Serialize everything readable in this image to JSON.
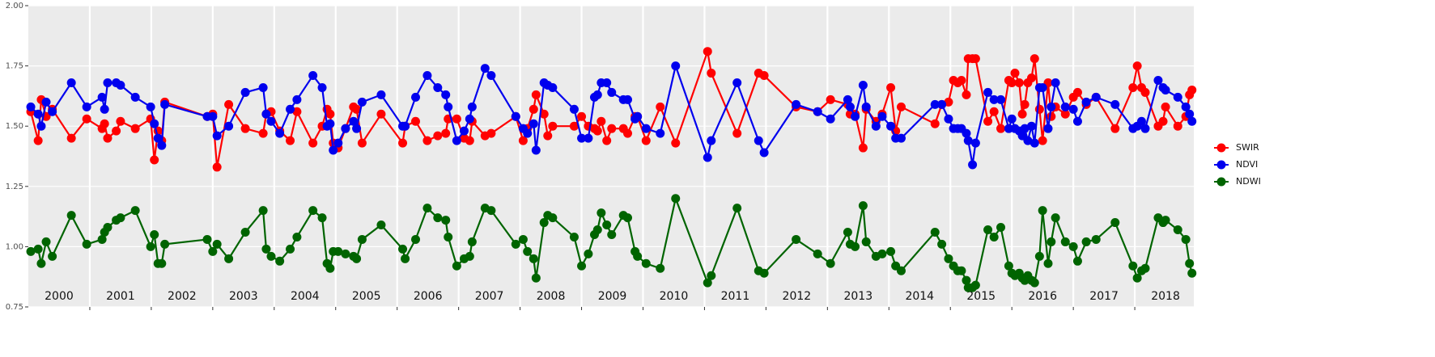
{
  "chart_data": {
    "type": "line",
    "x": [
      2000.04,
      2000.16,
      2000.21,
      2000.29,
      2000.39,
      2000.7,
      2000.95,
      2001.2,
      2001.24,
      2001.29,
      2001.43,
      2001.5,
      2001.74,
      2001.99,
      2002.05,
      2002.11,
      2002.17,
      2002.22,
      2002.91,
      2003.0,
      2003.07,
      2003.26,
      2003.53,
      2003.82,
      2003.87,
      2003.95,
      2004.09,
      2004.26,
      2004.37,
      2004.63,
      2004.78,
      2004.86,
      2004.91,
      2004.96,
      2005.04,
      2005.16,
      2005.29,
      2005.34,
      2005.43,
      2005.74,
      2006.09,
      2006.13,
      2006.3,
      2006.49,
      2006.66,
      2006.79,
      2006.83,
      2006.97,
      2007.09,
      2007.18,
      2007.22,
      2007.43,
      2007.53,
      2007.93,
      2008.05,
      2008.12,
      2008.22,
      2008.26,
      2008.39,
      2008.45,
      2008.53,
      2008.88,
      2009.0,
      2009.11,
      2009.21,
      2009.26,
      2009.32,
      2009.41,
      2009.49,
      2009.68,
      2009.75,
      2009.87,
      2009.91,
      2010.05,
      2010.28,
      2010.53,
      2011.05,
      2011.11,
      2011.53,
      2011.88,
      2011.97,
      2012.49,
      2012.84,
      2013.05,
      2013.33,
      2013.37,
      2013.45,
      2013.58,
      2013.63,
      2013.79,
      2013.89,
      2014.03,
      2014.11,
      2014.2,
      2014.75,
      2014.86,
      2014.97,
      2015.05,
      2015.12,
      2015.18,
      2015.26,
      2015.29,
      2015.36,
      2015.41,
      2015.61,
      2015.71,
      2015.82,
      2015.95,
      2016.0,
      2016.05,
      2016.12,
      2016.17,
      2016.21,
      2016.26,
      2016.32,
      2016.37,
      2016.45,
      2016.5,
      2016.59,
      2016.64,
      2016.71,
      2016.87,
      2017.0,
      2017.07,
      2017.21,
      2017.37,
      2017.68,
      2017.97,
      2018.04,
      2018.11,
      2018.17,
      2018.38,
      2018.46,
      2018.5,
      2018.7,
      2018.83,
      2018.89,
      2018.93
    ],
    "series": [
      {
        "name": "SWIR",
        "color": "#ff0000",
        "values": [
          1.56,
          1.44,
          1.61,
          1.54,
          1.57,
          1.45,
          1.53,
          1.49,
          1.51,
          1.45,
          1.48,
          1.52,
          1.49,
          1.53,
          1.36,
          1.48,
          1.44,
          1.6,
          1.54,
          1.55,
          1.33,
          1.59,
          1.49,
          1.47,
          1.55,
          1.56,
          1.48,
          1.44,
          1.56,
          1.43,
          1.5,
          1.57,
          1.55,
          1.43,
          1.41,
          1.49,
          1.58,
          1.57,
          1.43,
          1.55,
          1.43,
          1.5,
          1.52,
          1.44,
          1.46,
          1.47,
          1.53,
          1.53,
          1.45,
          1.44,
          1.52,
          1.46,
          1.47,
          1.54,
          1.44,
          1.49,
          1.57,
          1.63,
          1.55,
          1.46,
          1.5,
          1.5,
          1.54,
          1.5,
          1.49,
          1.48,
          1.52,
          1.44,
          1.49,
          1.49,
          1.47,
          1.54,
          1.54,
          1.44,
          1.58,
          1.43,
          1.81,
          1.72,
          1.47,
          1.72,
          1.71,
          1.58,
          1.56,
          1.61,
          1.59,
          1.55,
          1.55,
          1.41,
          1.57,
          1.52,
          1.55,
          1.66,
          1.48,
          1.58,
          1.51,
          1.59,
          1.6,
          1.69,
          1.68,
          1.69,
          1.63,
          1.78,
          1.78,
          1.78,
          1.52,
          1.56,
          1.49,
          1.69,
          1.68,
          1.72,
          1.68,
          1.55,
          1.59,
          1.68,
          1.7,
          1.78,
          1.57,
          1.44,
          1.68,
          1.54,
          1.58,
          1.55,
          1.62,
          1.64,
          1.59,
          1.62,
          1.49,
          1.66,
          1.75,
          1.66,
          1.64,
          1.5,
          1.52,
          1.58,
          1.5,
          1.54,
          1.63,
          1.65
        ]
      },
      {
        "name": "NDVI",
        "color": "#0000ee",
        "values": [
          1.58,
          1.55,
          1.5,
          1.6,
          1.56,
          1.68,
          1.58,
          1.62,
          1.57,
          1.68,
          1.68,
          1.67,
          1.62,
          1.58,
          1.51,
          1.45,
          1.42,
          1.59,
          1.54,
          1.54,
          1.46,
          1.5,
          1.64,
          1.66,
          1.55,
          1.52,
          1.47,
          1.57,
          1.61,
          1.71,
          1.66,
          1.5,
          1.51,
          1.4,
          1.43,
          1.49,
          1.52,
          1.49,
          1.6,
          1.63,
          1.5,
          1.5,
          1.62,
          1.71,
          1.66,
          1.63,
          1.58,
          1.44,
          1.48,
          1.53,
          1.58,
          1.74,
          1.71,
          1.54,
          1.49,
          1.47,
          1.51,
          1.4,
          1.68,
          1.67,
          1.66,
          1.57,
          1.45,
          1.45,
          1.62,
          1.63,
          1.68,
          1.68,
          1.64,
          1.61,
          1.61,
          1.53,
          1.54,
          1.49,
          1.47,
          1.75,
          1.37,
          1.44,
          1.68,
          1.44,
          1.39,
          1.59,
          1.56,
          1.53,
          1.61,
          1.58,
          1.54,
          1.67,
          1.58,
          1.5,
          1.54,
          1.5,
          1.45,
          1.45,
          1.59,
          1.59,
          1.53,
          1.49,
          1.49,
          1.49,
          1.47,
          1.44,
          1.34,
          1.43,
          1.64,
          1.61,
          1.61,
          1.49,
          1.53,
          1.49,
          1.48,
          1.46,
          1.49,
          1.44,
          1.5,
          1.43,
          1.66,
          1.66,
          1.49,
          1.58,
          1.68,
          1.58,
          1.57,
          1.52,
          1.6,
          1.62,
          1.59,
          1.49,
          1.5,
          1.52,
          1.49,
          1.69,
          1.66,
          1.65,
          1.62,
          1.58,
          1.55,
          1.52
        ]
      },
      {
        "name": "NDWI",
        "color": "#006400",
        "values": [
          0.98,
          0.99,
          0.93,
          1.02,
          0.96,
          1.13,
          1.01,
          1.03,
          1.06,
          1.08,
          1.11,
          1.12,
          1.15,
          1.0,
          1.05,
          0.93,
          0.93,
          1.01,
          1.03,
          0.98,
          1.01,
          0.95,
          1.06,
          1.15,
          0.99,
          0.96,
          0.94,
          0.99,
          1.04,
          1.15,
          1.12,
          0.93,
          0.91,
          0.98,
          0.98,
          0.97,
          0.96,
          0.95,
          1.03,
          1.09,
          0.99,
          0.95,
          1.03,
          1.16,
          1.12,
          1.11,
          1.04,
          0.92,
          0.95,
          0.96,
          1.02,
          1.16,
          1.15,
          1.01,
          1.03,
          0.98,
          0.95,
          0.87,
          1.1,
          1.13,
          1.12,
          1.04,
          0.92,
          0.97,
          1.05,
          1.07,
          1.14,
          1.09,
          1.05,
          1.13,
          1.12,
          0.98,
          0.96,
          0.93,
          0.91,
          1.2,
          0.85,
          0.88,
          1.16,
          0.9,
          0.89,
          1.03,
          0.97,
          0.93,
          1.06,
          1.01,
          1.0,
          1.17,
          1.02,
          0.96,
          0.97,
          0.98,
          0.92,
          0.9,
          1.06,
          1.01,
          0.95,
          0.92,
          0.9,
          0.9,
          0.86,
          0.83,
          0.83,
          0.84,
          1.07,
          1.04,
          1.08,
          0.92,
          0.89,
          0.88,
          0.89,
          0.87,
          0.86,
          0.88,
          0.86,
          0.85,
          0.96,
          1.15,
          0.93,
          1.02,
          1.12,
          1.02,
          1.0,
          0.94,
          1.02,
          1.03,
          1.1,
          0.92,
          0.87,
          0.9,
          0.91,
          1.12,
          1.1,
          1.11,
          1.07,
          1.03,
          0.93,
          0.89
        ]
      }
    ],
    "xlim": [
      2000,
      2018.96
    ],
    "xticks": [
      {
        "value": 2000.5,
        "label": "2000"
      },
      {
        "value": 2001.5,
        "label": "2001"
      },
      {
        "value": 2002.5,
        "label": "2002"
      },
      {
        "value": 2003.5,
        "label": "2003"
      },
      {
        "value": 2004.5,
        "label": "2004"
      },
      {
        "value": 2005.5,
        "label": "2005"
      },
      {
        "value": 2006.5,
        "label": "2006"
      },
      {
        "value": 2007.5,
        "label": "2007"
      },
      {
        "value": 2008.5,
        "label": "2008"
      },
      {
        "value": 2009.5,
        "label": "2009"
      },
      {
        "value": 2010.5,
        "label": "2010"
      },
      {
        "value": 2011.5,
        "label": "2011"
      },
      {
        "value": 2012.5,
        "label": "2012"
      },
      {
        "value": 2013.5,
        "label": "2013"
      },
      {
        "value": 2014.5,
        "label": "2014"
      },
      {
        "value": 2015.5,
        "label": "2015"
      },
      {
        "value": 2016.5,
        "label": "2016"
      },
      {
        "value": 2017.5,
        "label": "2017"
      },
      {
        "value": 2018.5,
        "label": "2018"
      }
    ],
    "xgrid": [
      2001,
      2002,
      2003,
      2004,
      2005,
      2006,
      2007,
      2008,
      2009,
      2010,
      2011,
      2012,
      2013,
      2014,
      2015,
      2016,
      2017,
      2018
    ],
    "ylim": [
      0.75,
      2.0
    ],
    "yticks": [
      {
        "value": 0.75,
        "label": "0.75"
      },
      {
        "value": 1.0,
        "label": "1.00"
      },
      {
        "value": 1.25,
        "label": "1.25"
      },
      {
        "value": 1.5,
        "label": "1.50"
      },
      {
        "value": 1.75,
        "label": "1.75"
      },
      {
        "value": 2.0,
        "label": "2.00"
      }
    ],
    "grid": true,
    "legend": "right"
  }
}
